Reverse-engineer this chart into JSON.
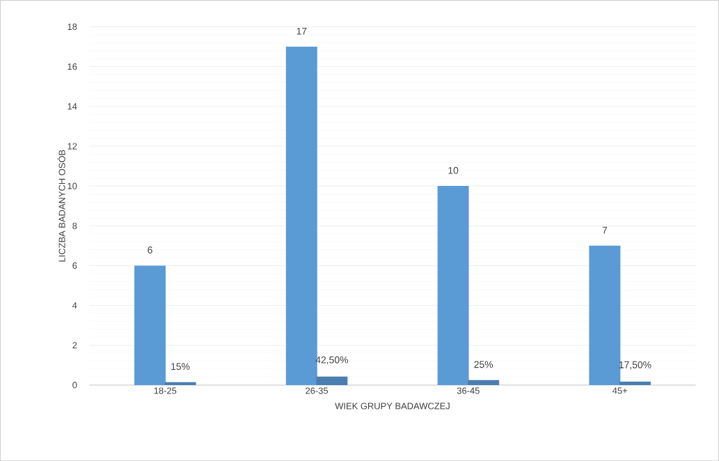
{
  "chart_data": {
    "type": "bar",
    "xlabel": "WIEK GRUPY BADAWCZEJ",
    "ylabel": "LICZBA BADANYCH OSÓB",
    "categories": [
      "18-25",
      "26-35",
      "36-45",
      "45+"
    ],
    "series": [
      {
        "color": "#5b9bd5",
        "values": [
          6,
          17,
          10,
          7
        ],
        "value_labels": [
          "6",
          "17",
          "10",
          "7"
        ]
      },
      {
        "color": "#4a7eb0",
        "values": [
          0.15,
          0.425,
          0.25,
          0.175
        ],
        "value_labels": [
          "15%",
          "42,50%",
          "25%",
          "17,50%"
        ]
      }
    ],
    "ylim": [
      0,
      18
    ],
    "yticks": [
      0,
      2,
      4,
      6,
      8,
      10,
      12,
      14,
      16,
      18
    ],
    "grid": "y"
  }
}
